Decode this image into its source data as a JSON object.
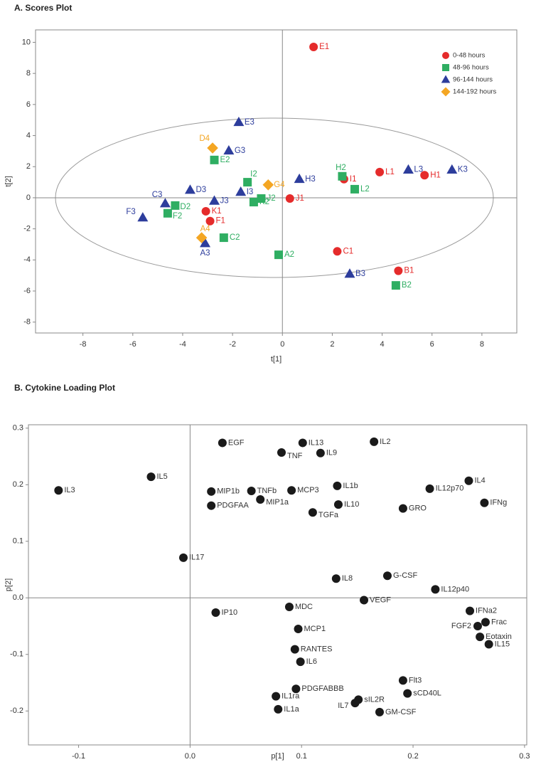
{
  "chart_data": [
    {
      "type": "scatter",
      "title": "A. Scores Plot",
      "x_label": "t[1]",
      "y_label": "t[2]",
      "xlim": [
        -9.9,
        9.4
      ],
      "ylim": [
        -8.7,
        10.8
      ],
      "xticks": [
        -8,
        -6,
        -4,
        -2,
        0,
        2,
        4,
        6,
        8
      ],
      "yticks": [
        -8,
        -6,
        -4,
        -2,
        0,
        2,
        4,
        6,
        8,
        10
      ],
      "legend": "upper right",
      "series": [
        {
          "name": "0-48 hours",
          "color": "#e52b2b",
          "marker": "circle",
          "labels": [
            "E1",
            "I1",
            "L1",
            "H1",
            "J1",
            "K1",
            "F1",
            "C1",
            "B1"
          ],
          "x": [
            1.25,
            2.47,
            3.9,
            5.7,
            0.3,
            -3.07,
            -2.9,
            2.2,
            4.65
          ],
          "values": [
            9.7,
            1.2,
            1.65,
            1.45,
            -0.05,
            -0.87,
            -1.5,
            -3.45,
            -4.7
          ]
        },
        {
          "name": "48-96 hours",
          "color": "#2fae62",
          "marker": "square",
          "labels": [
            "H2",
            "L2",
            "I2",
            "J2",
            "K2",
            "E2",
            "D2",
            "F2",
            "C2",
            "A2",
            "B2"
          ],
          "x": [
            2.4,
            2.9,
            -1.4,
            -0.85,
            -1.15,
            -2.73,
            -4.3,
            -4.6,
            -2.35,
            -0.15,
            4.55
          ],
          "values": [
            1.38,
            0.55,
            1.0,
            -0.05,
            -0.28,
            2.43,
            -0.5,
            -1.0,
            -2.57,
            -3.67,
            -5.64
          ]
        },
        {
          "name": "96-144 hours",
          "color": "#2d3d9c",
          "marker": "triangle",
          "labels": [
            "E3",
            "G3",
            "H3",
            "L3",
            "K3",
            "D3",
            "J3",
            "I3",
            "C3",
            "F3",
            "A3",
            "B3"
          ],
          "x": [
            -1.75,
            -2.15,
            0.68,
            5.05,
            6.8,
            -3.7,
            -2.73,
            -1.67,
            -4.7,
            -5.6,
            -3.1,
            2.7
          ],
          "values": [
            4.86,
            3.03,
            1.2,
            1.8,
            1.8,
            0.5,
            -0.2,
            0.37,
            -0.37,
            -1.28,
            -2.93,
            -4.9
          ]
        },
        {
          "name": "144-192 hours",
          "color": "#f4a623",
          "marker": "diamond",
          "labels": [
            "D4",
            "G4",
            "A4"
          ],
          "x": [
            -2.8,
            -0.57,
            -3.24
          ],
          "values": [
            3.2,
            0.83,
            -2.57
          ]
        }
      ]
    },
    {
      "type": "scatter",
      "title": "B. Cytokine Loading Plot",
      "x_label": "p[1]",
      "y_label": "p[2]",
      "xlim": [
        -0.145,
        0.302
      ],
      "ylim": [
        -0.26,
        0.306
      ],
      "xticks": [
        -0.1,
        {
          "value": 0,
          "label": "0.0"
        },
        0.1,
        0.2,
        0.3
      ],
      "yticks": [
        -0.2,
        -0.1,
        {
          "value": 0,
          "label": "0.0"
        },
        0.1,
        0.2,
        0.3
      ],
      "series": [
        {
          "color": "#1a1a1a",
          "marker": "circle",
          "labels": [
            "EGF",
            "IL13",
            "IL2",
            "TNF",
            "IL9",
            "TNFb",
            "MCP3",
            "MIP1a",
            "IL5",
            "IL3",
            "MIP1b",
            "IL1b",
            "IL4",
            "IL12p70",
            "PDGFAA",
            "IL10",
            "TGFa",
            "GRO",
            "IFNg",
            "IL17",
            "IL8",
            "G-CSF",
            "IL12p40",
            "VEGF",
            "IP10",
            "MDC",
            "IFNa2",
            "Frac",
            "FGF2",
            "Eotaxin",
            "IL15",
            "MCP1",
            "RANTES",
            "IL6",
            "Flt3",
            "PDGFABBB",
            "sCD40L",
            "IL1ra",
            "sIL2R",
            "IL7",
            "GM-CSF",
            "IL1a"
          ],
          "x": [
            0.029,
            0.101,
            0.165,
            0.082,
            0.117,
            0.055,
            0.091,
            0.063,
            -0.035,
            -0.118,
            0.019,
            0.132,
            0.25,
            0.215,
            0.019,
            0.133,
            0.11,
            0.191,
            0.264,
            -0.006,
            0.131,
            0.177,
            0.22,
            0.156,
            0.023,
            0.089,
            0.251,
            0.265,
            0.258,
            0.26,
            0.268,
            0.097,
            0.094,
            0.099,
            0.191,
            0.095,
            0.195,
            0.077,
            0.151,
            0.148,
            0.17,
            0.079
          ],
          "values": [
            0.274,
            0.274,
            0.276,
            0.257,
            0.256,
            0.189,
            0.19,
            0.174,
            0.214,
            0.19,
            0.188,
            0.198,
            0.207,
            0.193,
            0.163,
            0.165,
            0.151,
            0.158,
            0.168,
            0.071,
            0.034,
            0.039,
            0.015,
            -0.004,
            -0.026,
            -0.016,
            -0.023,
            -0.043,
            -0.05,
            -0.069,
            -0.082,
            -0.055,
            -0.091,
            -0.113,
            -0.146,
            -0.161,
            -0.169,
            -0.174,
            -0.18,
            -0.186,
            -0.202,
            -0.197
          ]
        }
      ]
    }
  ]
}
